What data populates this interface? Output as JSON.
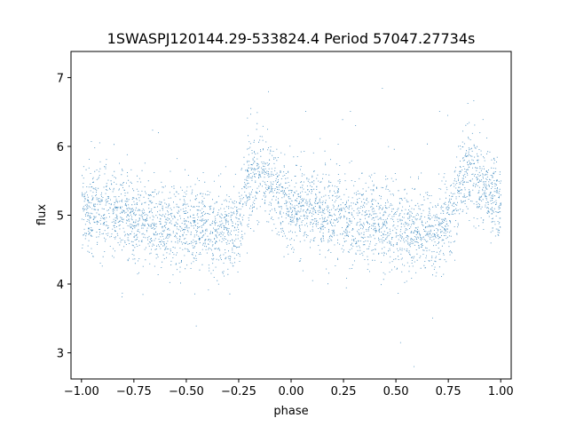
{
  "chart_data": {
    "type": "scatter",
    "title": "1SWASPJ120144.29-533824.4 Period 57047.27734s",
    "xlabel": "phase",
    "ylabel": "flux",
    "xlim": [
      -1.05,
      1.05
    ],
    "ylim": [
      2.62,
      7.38
    ],
    "xticks": [
      -1.0,
      -0.75,
      -0.5,
      -0.25,
      0.0,
      0.25,
      0.5,
      0.75,
      1.0
    ],
    "xtick_labels": [
      "−1.00",
      "−0.75",
      "−0.50",
      "−0.25",
      "0.00",
      "0.25",
      "0.50",
      "0.75",
      "1.00"
    ],
    "yticks": [
      3,
      4,
      5,
      6,
      7
    ],
    "ytick_labels": [
      "3",
      "4",
      "5",
      "6",
      "7"
    ],
    "grid": false,
    "legend": "none",
    "point_color": "#1f77b4",
    "series": [
      {
        "phase_flux_profile": [
          {
            "x": -1.0,
            "y": 5.12
          },
          {
            "x": -0.9,
            "y": 5.08
          },
          {
            "x": -0.8,
            "y": 5.0
          },
          {
            "x": -0.7,
            "y": 4.92
          },
          {
            "x": -0.6,
            "y": 4.88
          },
          {
            "x": -0.5,
            "y": 4.85
          },
          {
            "x": -0.4,
            "y": 4.8
          },
          {
            "x": -0.3,
            "y": 4.75
          },
          {
            "x": -0.25,
            "y": 4.9
          },
          {
            "x": -0.2,
            "y": 5.55
          },
          {
            "x": -0.15,
            "y": 5.6
          },
          {
            "x": -0.1,
            "y": 5.45
          },
          {
            "x": 0.0,
            "y": 5.12
          },
          {
            "x": 0.1,
            "y": 5.08
          },
          {
            "x": 0.2,
            "y": 5.0
          },
          {
            "x": 0.3,
            "y": 4.92
          },
          {
            "x": 0.4,
            "y": 4.88
          },
          {
            "x": 0.5,
            "y": 4.85
          },
          {
            "x": 0.6,
            "y": 4.8
          },
          {
            "x": 0.7,
            "y": 4.75
          },
          {
            "x": 0.75,
            "y": 4.9
          },
          {
            "x": 0.8,
            "y": 5.55
          },
          {
            "x": 0.85,
            "y": 5.6
          },
          {
            "x": 0.9,
            "y": 5.45
          },
          {
            "x": 1.0,
            "y": 5.12
          }
        ],
        "scatter_std": 0.3,
        "point_count": 14000
      }
    ]
  }
}
